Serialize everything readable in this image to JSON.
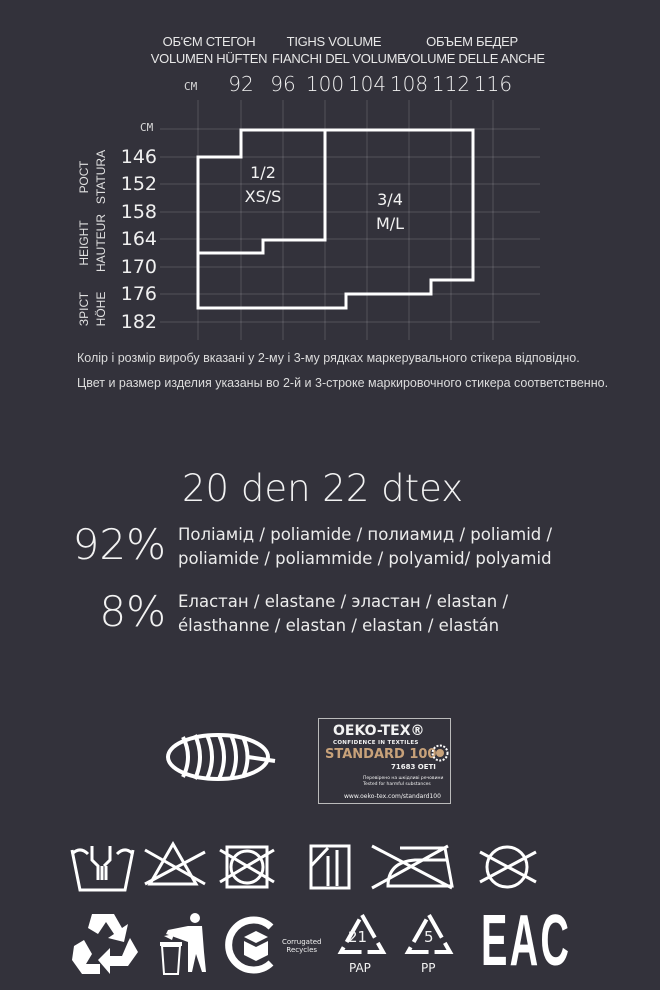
{
  "size_chart": {
    "hip_headers": [
      [
        "ОБ'ЄМ СТЕГОН",
        "VOLUMEN HÜFTEN"
      ],
      [
        "TIGHS VOLUME",
        "FIANCHI DEL VOLUME"
      ],
      [
        "ОБЪЕМ БЕДЕР",
        "VOLUME DELLE ANCHE"
      ]
    ],
    "unit": "СМ",
    "hip_values": [
      "92",
      "96",
      "100",
      "104",
      "108",
      "112",
      "116"
    ],
    "height_values": [
      "146",
      "152",
      "158",
      "164",
      "170",
      "176",
      "182"
    ],
    "height_labels": [
      [
        "РОСТ",
        "STATURA"
      ],
      [
        "HEIGHT",
        "HAUTEUR"
      ],
      [
        "ЗРІСТ",
        "HÖHE"
      ]
    ],
    "sizes": [
      {
        "number": "1/2",
        "letter": "XS/S"
      },
      {
        "number": "3/4",
        "letter": "M/L"
      }
    ]
  },
  "notes": [
    "Колір і розмір виробу вказані у 2-му і 3-му рядках маркерувального стікера відповідно.",
    "Цвет и размер изделия указаны во 2-й и 3-строке маркировочного стикера соответственно."
  ],
  "density": "20 den  22 dtex",
  "composition": [
    {
      "percent": "92%",
      "lines": [
        "Поліамід / poliamide / полиамид / poliamid /",
        "poliamide / poliammide / polyamid/ polyamid"
      ]
    },
    {
      "percent": "8%",
      "lines": [
        "Еластан / elastane / эластан / elastan /",
        "élasthanne / elastan / elastan / elastán"
      ]
    }
  ],
  "oeko_tex": {
    "brand": "OEKO-TEX®",
    "tagline": "CONFIDENCE IN TEXTILES",
    "standard": "STANDARD 100",
    "code": "71683 OETI",
    "tested_ua": "Перевірено на шкідливі речовини",
    "tested_en": "Tested for harmful substances",
    "url": "www.oeko-tex.com/standard100",
    "accent": "#c8a27a"
  },
  "care_symbols": [
    "hand-wash-icon",
    "no-bleach-icon",
    "no-tumble-dry-icon",
    "drip-dry-shade-icon",
    "no-iron-icon",
    "no-dry-clean-icon"
  ],
  "packaging_symbols": {
    "corrugated": [
      "Corrugated",
      "Recycles"
    ],
    "pap_number": "21",
    "pap_label": "PAP",
    "pp_number": "5",
    "pp_label": "PP",
    "eac": "EAC"
  },
  "colors": {
    "background": "#33323b",
    "foreground": "#ffffff"
  }
}
